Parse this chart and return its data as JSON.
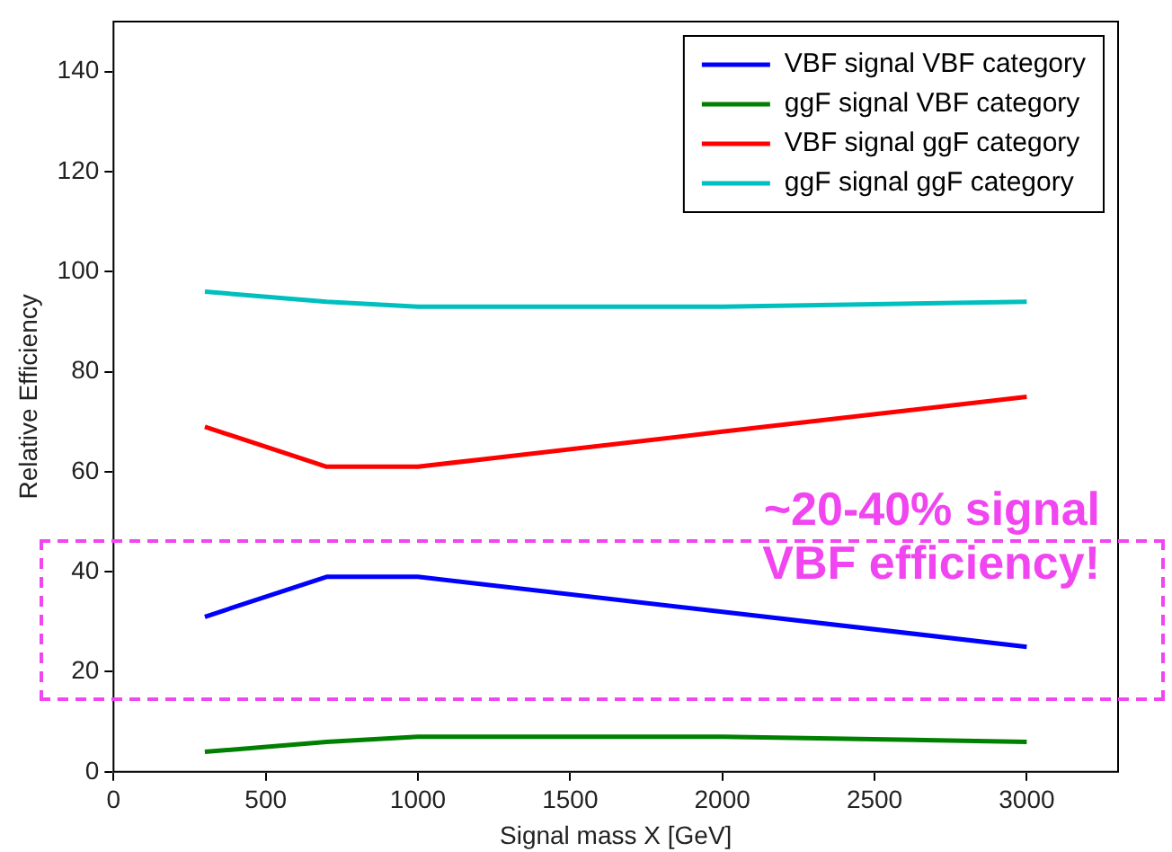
{
  "chart_data": {
    "type": "line",
    "xlabel": "Signal mass X [GeV]",
    "ylabel": "Relative Efficiency",
    "x": [
      300,
      700,
      1000,
      2000,
      3000
    ],
    "series": [
      {
        "name": "VBF signal VBF category",
        "color": "#0000ff",
        "values": [
          31,
          39,
          39,
          32,
          25
        ]
      },
      {
        "name": "ggF signal VBF category",
        "color": "#008000",
        "values": [
          4,
          6,
          7,
          7,
          6
        ]
      },
      {
        "name": "VBF signal ggF category",
        "color": "#ff0000",
        "values": [
          69,
          61,
          61,
          68,
          75
        ]
      },
      {
        "name": "ggF signal ggF category",
        "color": "#00bfbf",
        "values": [
          96,
          94,
          93,
          93,
          94
        ]
      }
    ],
    "xlim": [
      0,
      3300
    ],
    "xticks": [
      0,
      500,
      1000,
      1500,
      2000,
      2500,
      3000
    ],
    "ylim": [
      0,
      150
    ],
    "yticks": [
      0,
      20,
      40,
      60,
      80,
      100,
      120,
      140
    ],
    "grid": false,
    "legend": "top right",
    "marker": "none",
    "line_style": "solid",
    "annotations": [
      "~20-40% signal VBF efficiency!"
    ]
  }
}
